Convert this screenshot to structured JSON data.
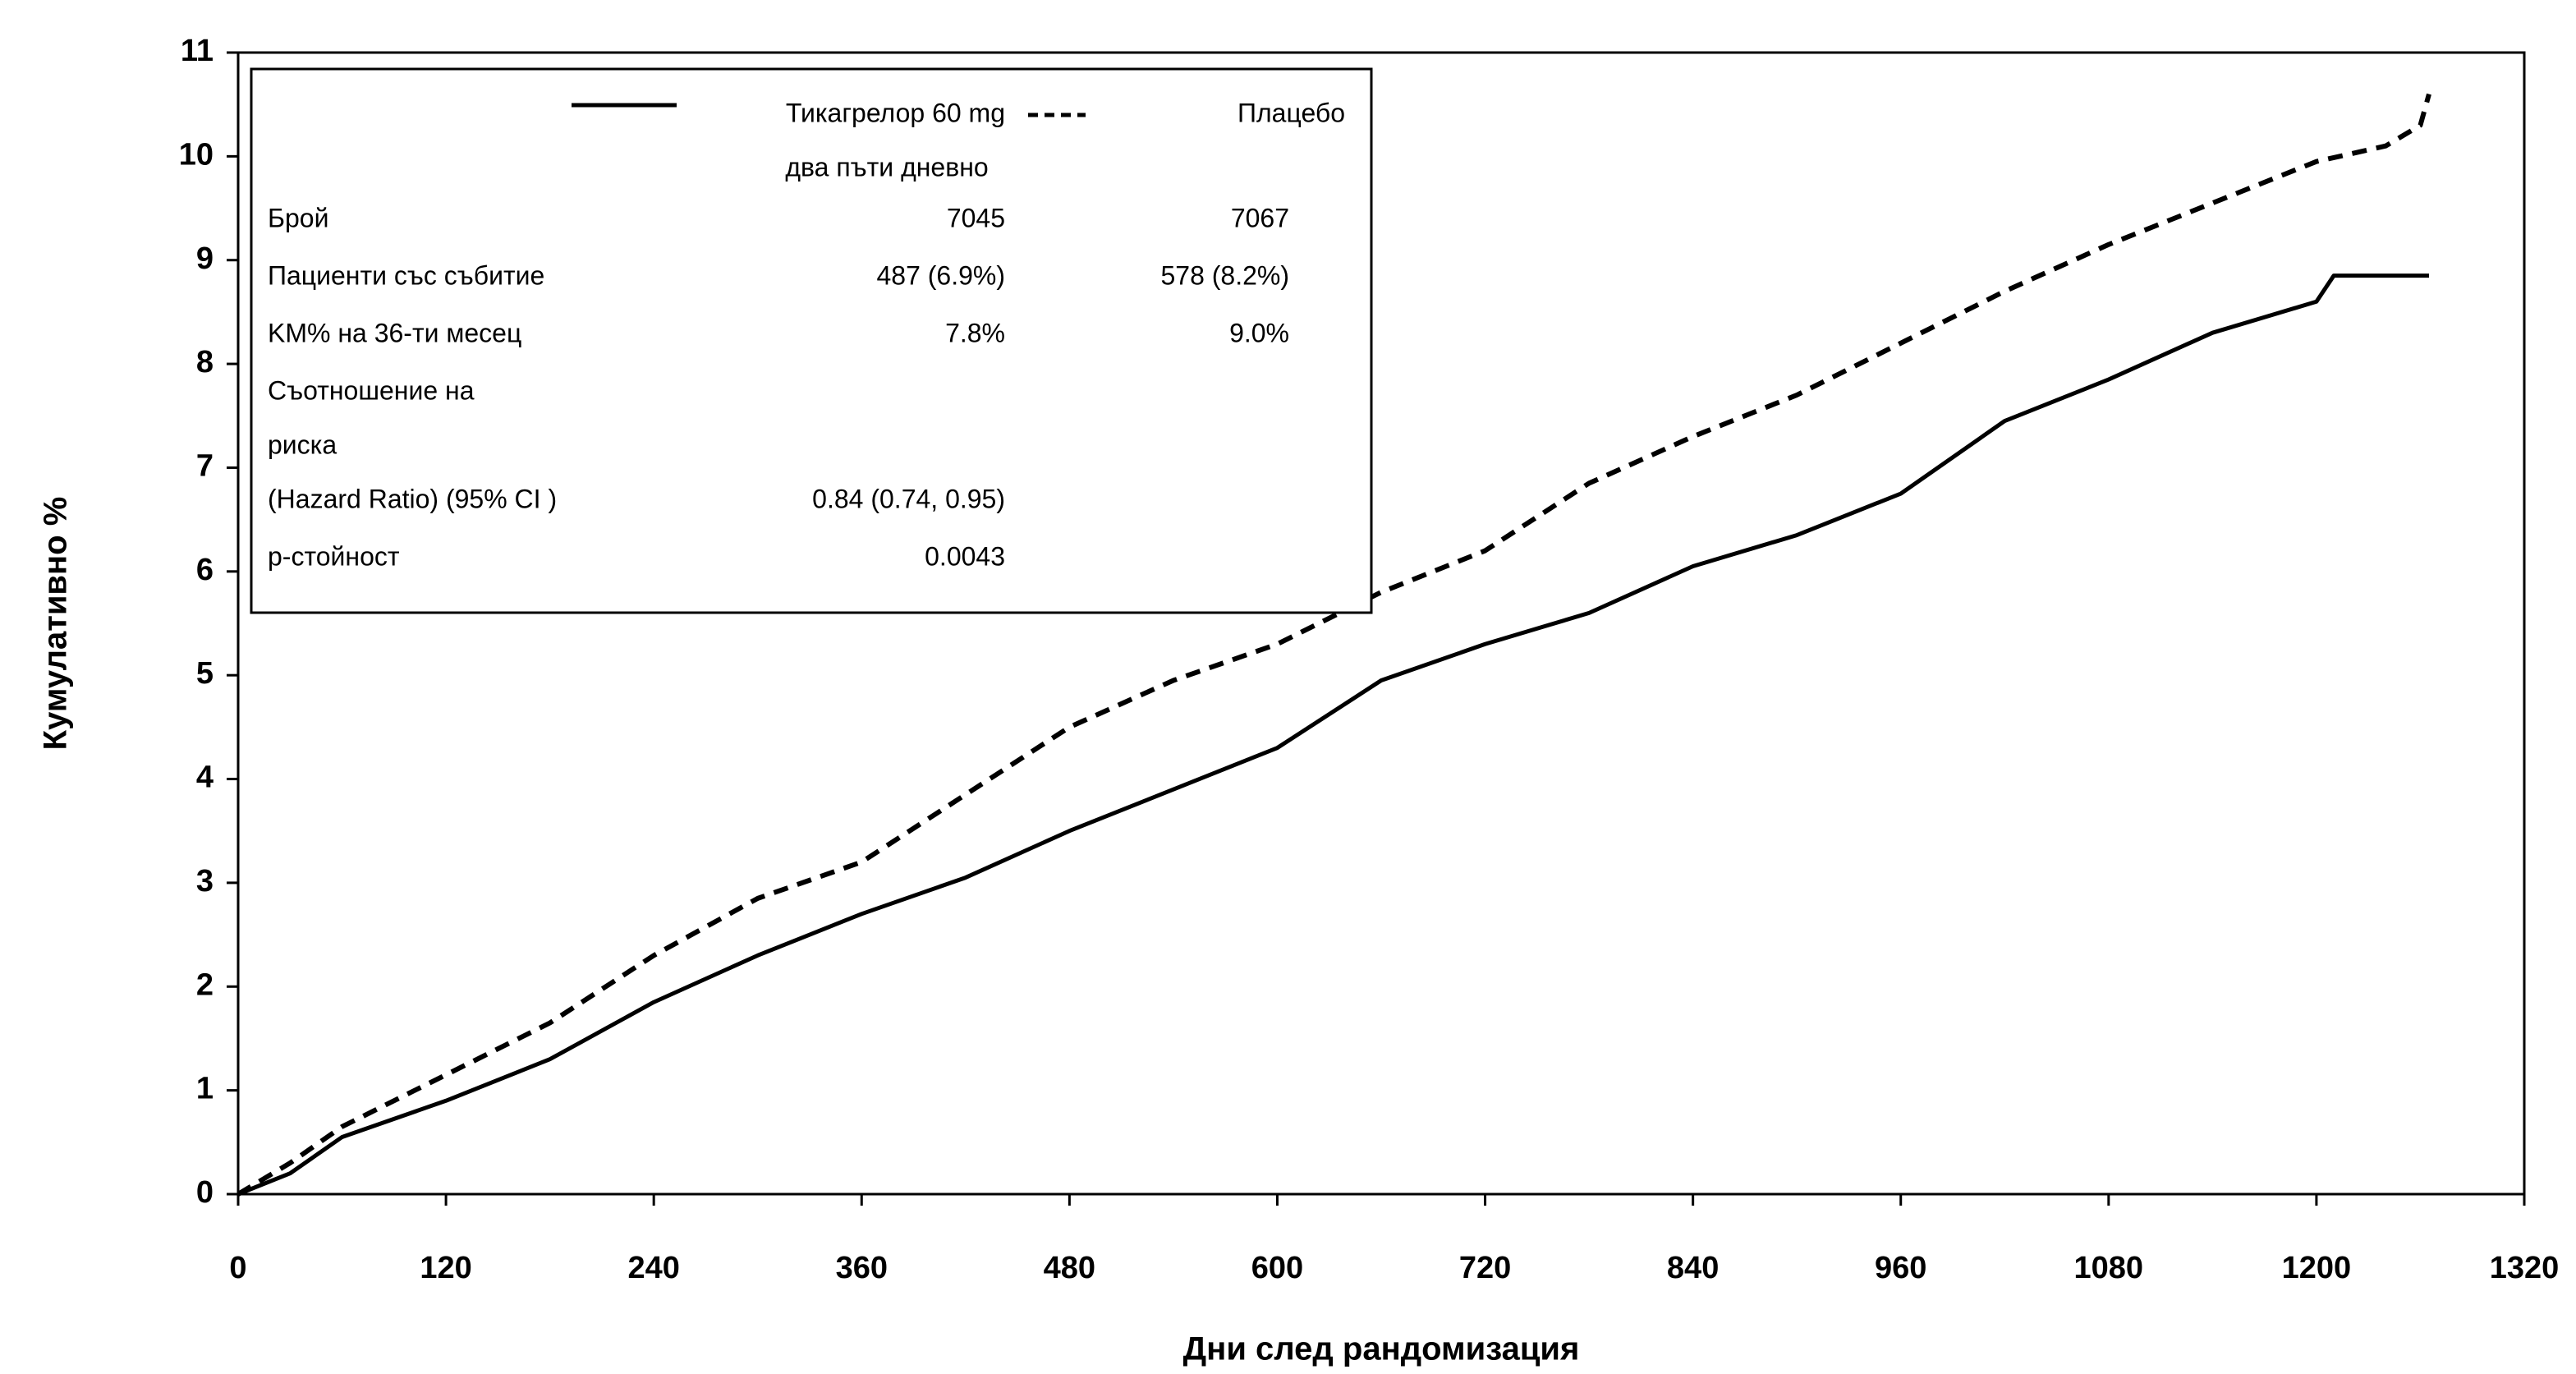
{
  "chart_data": {
    "type": "line",
    "ylabel": "Кумулативно %",
    "xlabel": "Дни след рандомизация",
    "xlim": [
      0,
      1320
    ],
    "ylim": [
      0,
      11
    ],
    "xticks": [
      0,
      120,
      240,
      360,
      480,
      600,
      720,
      840,
      960,
      1080,
      1200,
      1320
    ],
    "yticks": [
      0,
      1,
      2,
      3,
      4,
      5,
      6,
      7,
      8,
      9,
      10,
      11
    ],
    "series": [
      {
        "name": "Тикагрелор 60 mg",
        "note": "два пъти дневно",
        "color": "#000000",
        "dash": false,
        "x": [
          0,
          30,
          60,
          120,
          180,
          240,
          300,
          360,
          420,
          480,
          540,
          600,
          660,
          720,
          780,
          840,
          900,
          960,
          1020,
          1080,
          1140,
          1200,
          1210,
          1265
        ],
        "values": [
          0,
          0.2,
          0.55,
          0.9,
          1.3,
          1.85,
          2.3,
          2.7,
          3.05,
          3.5,
          3.9,
          4.3,
          4.95,
          5.3,
          5.6,
          6.05,
          6.35,
          6.75,
          7.45,
          7.85,
          8.3,
          8.6,
          8.85,
          8.85
        ]
      },
      {
        "name": "Плацебо",
        "color": "#000000",
        "dash": true,
        "x": [
          0,
          30,
          60,
          120,
          180,
          240,
          300,
          360,
          420,
          480,
          540,
          600,
          660,
          720,
          780,
          840,
          900,
          960,
          1020,
          1080,
          1140,
          1200,
          1240,
          1260,
          1265
        ],
        "values": [
          0,
          0.3,
          0.65,
          1.15,
          1.65,
          2.3,
          2.85,
          3.2,
          3.85,
          4.5,
          4.95,
          5.3,
          5.8,
          6.2,
          6.85,
          7.3,
          7.7,
          8.2,
          8.7,
          9.15,
          9.55,
          9.95,
          10.1,
          10.3,
          10.6
        ]
      }
    ],
    "legend_table": [
      {
        "label": [
          "Брой"
        ],
        "values": [
          "7045",
          "7067"
        ]
      },
      {
        "label": [
          "Пациенти със събитие"
        ],
        "values": [
          "487 (6.9%)",
          "578 (8.2%)"
        ]
      },
      {
        "label": [
          "KM% на 36-ти месец"
        ],
        "values": [
          "7.8%",
          "9.0%"
        ]
      },
      {
        "label": [
          "Съотношение на",
          "риска",
          "(Hazard Ratio) (95% CI )"
        ],
        "values": [
          "0.84 (0.74, 0.95)"
        ]
      },
      {
        "label": [
          "p-стойност"
        ],
        "values": [
          "0.0043"
        ]
      }
    ]
  }
}
